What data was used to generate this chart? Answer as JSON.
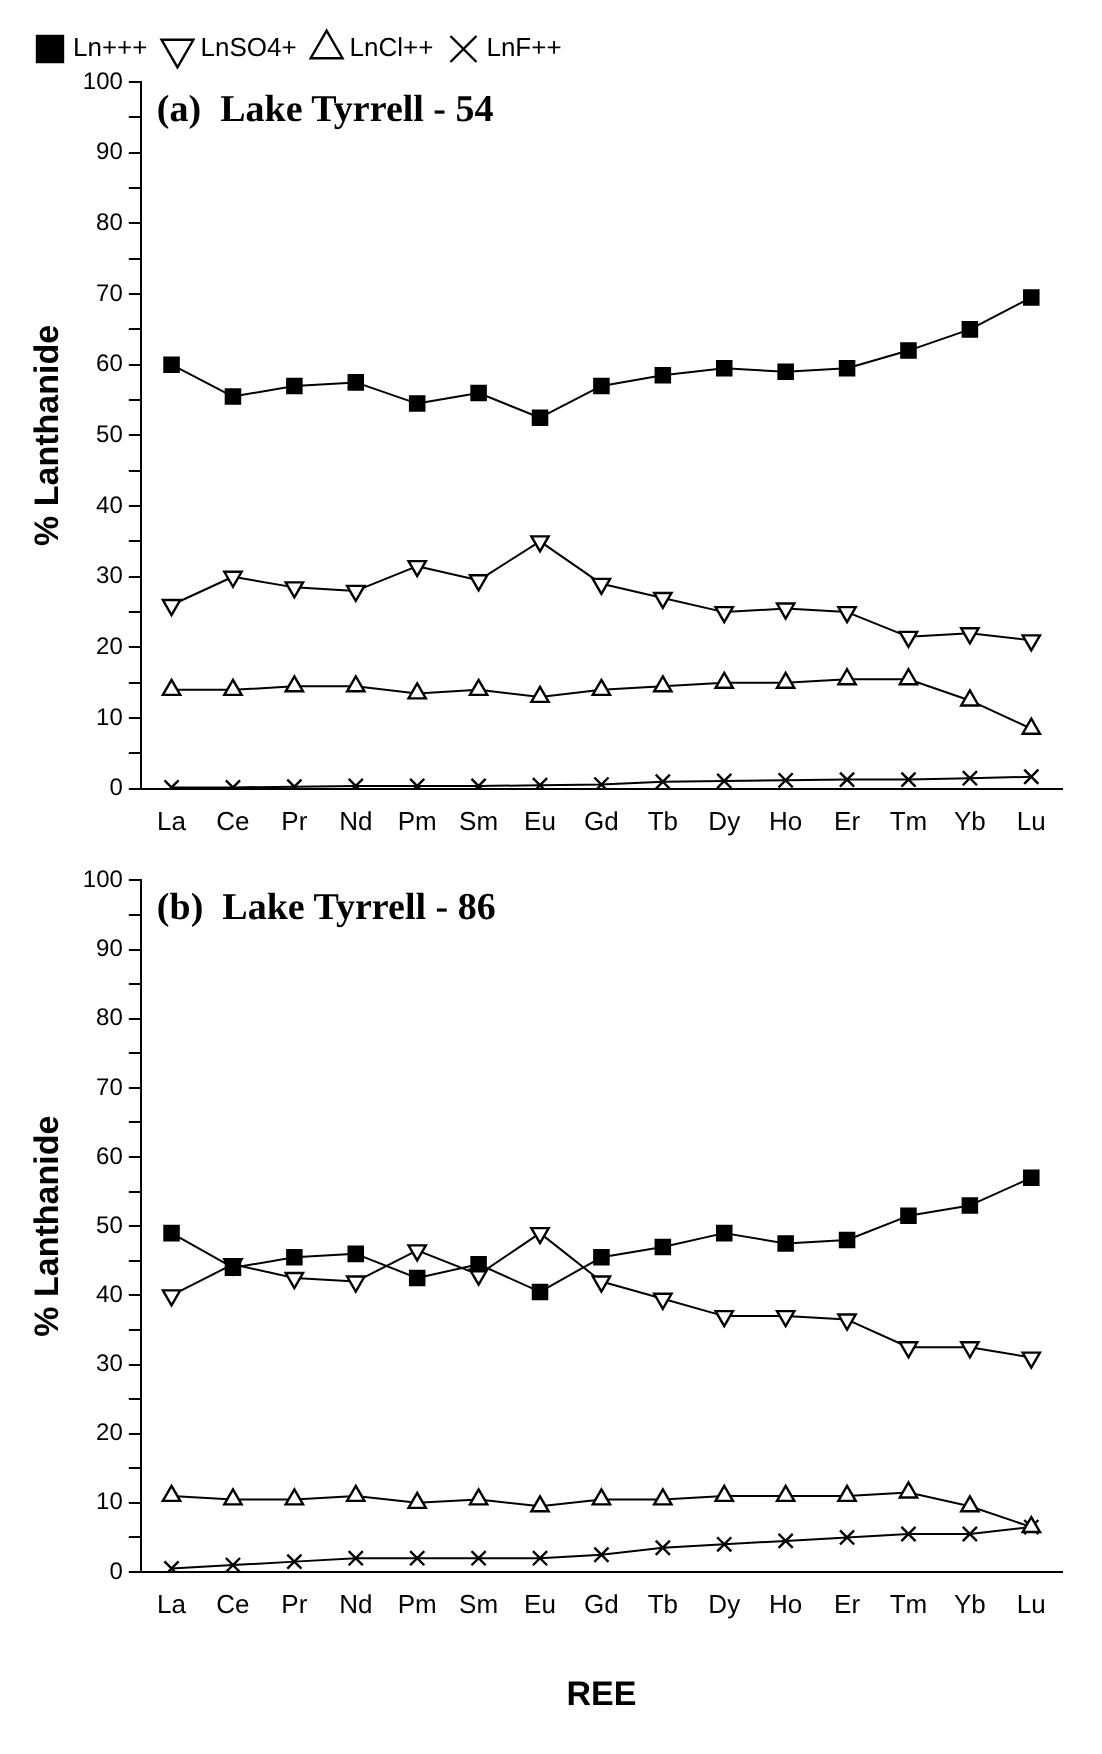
{
  "chart_data": [
    {
      "type": "line",
      "title": "(a)  Lake Tyrrell - 54",
      "ylabel": "% Lanthanide",
      "categories": [
        "La",
        "Ce",
        "Pr",
        "Nd",
        "Pm",
        "Sm",
        "Eu",
        "Gd",
        "Tb",
        "Dy",
        "Ho",
        "Er",
        "Tm",
        "Yb",
        "Lu"
      ],
      "ylim": [
        0,
        100
      ],
      "yticks": [
        0,
        {
          "value": 5,
          "label": null
        },
        10,
        {
          "value": 15,
          "label": null
        },
        20,
        {
          "value": 25,
          "label": null
        },
        30,
        {
          "value": 35,
          "label": null
        },
        40,
        {
          "value": 45,
          "label": null
        },
        50,
        {
          "value": 55,
          "label": null
        },
        60,
        {
          "value": 65,
          "label": null
        },
        70,
        {
          "value": 75,
          "label": null
        },
        80,
        {
          "value": 85,
          "label": null
        },
        90,
        {
          "value": 95,
          "label": null
        },
        100
      ],
      "grid": false,
      "legend": "top left",
      "line_style": "solid",
      "series": [
        {
          "name": "Ln+++",
          "color": "#000000",
          "marker": "square",
          "values": [
            60,
            55.5,
            57,
            57.5,
            54.5,
            56,
            52.5,
            57,
            58.5,
            59.5,
            59,
            59.5,
            62,
            65,
            69.5
          ]
        },
        {
          "name": "LnSO4+",
          "color": "#000000",
          "marker": "triangle-down",
          "values": [
            26,
            30,
            28.5,
            28,
            31.5,
            29.5,
            35,
            29,
            27,
            25,
            25.5,
            25,
            21.5,
            22,
            21
          ]
        },
        {
          "name": "LnCl++",
          "color": "#000000",
          "marker": "triangle",
          "values": [
            14,
            14,
            14.5,
            14.5,
            13.5,
            14,
            13,
            14,
            14.5,
            15,
            15,
            15.5,
            15.5,
            12.5,
            8.5
          ]
        },
        {
          "name": "LnF++",
          "color": "#000000",
          "marker": "cross",
          "values": [
            0.2,
            0.2,
            0.3,
            0.4,
            0.4,
            0.4,
            0.5,
            0.6,
            1,
            1.1,
            1.2,
            1.3,
            1.3,
            1.5,
            1.7
          ]
        }
      ]
    },
    {
      "type": "line",
      "title": "(b)  Lake Tyrrell - 86",
      "ylabel": "% Lanthanide",
      "xlabel": "REE",
      "categories": [
        "La",
        "Ce",
        "Pr",
        "Nd",
        "Pm",
        "Sm",
        "Eu",
        "Gd",
        "Tb",
        "Dy",
        "Ho",
        "Er",
        "Tm",
        "Yb",
        "Lu"
      ],
      "ylim": [
        0,
        100
      ],
      "yticks": [
        0,
        {
          "value": 5,
          "label": null
        },
        10,
        {
          "value": 15,
          "label": null
        },
        20,
        {
          "value": 25,
          "label": null
        },
        30,
        {
          "value": 35,
          "label": null
        },
        40,
        {
          "value": 45,
          "label": null
        },
        50,
        {
          "value": 55,
          "label": null
        },
        60,
        {
          "value": 65,
          "label": null
        },
        70,
        {
          "value": 75,
          "label": null
        },
        80,
        {
          "value": 85,
          "label": null
        },
        90,
        {
          "value": 95,
          "label": null
        },
        100
      ],
      "grid": false,
      "line_style": "solid",
      "series": [
        {
          "color": "#000000",
          "marker": "square",
          "values": [
            49,
            44,
            45.5,
            46,
            42.5,
            44.5,
            40.5,
            45.5,
            47,
            49,
            47.5,
            48,
            51.5,
            53,
            57
          ]
        },
        {
          "color": "#000000",
          "marker": "triangle-down",
          "values": [
            40,
            44.5,
            42.5,
            42,
            46.5,
            43,
            49,
            42,
            39.5,
            37,
            37,
            36.5,
            32.5,
            32.5,
            31
          ]
        },
        {
          "color": "#000000",
          "marker": "triangle",
          "values": [
            11,
            10.5,
            10.5,
            11,
            10,
            10.5,
            9.5,
            10.5,
            10.5,
            11,
            11,
            11,
            11.5,
            9.5,
            6.5
          ]
        },
        {
          "color": "#000000",
          "marker": "cross",
          "values": [
            0.5,
            1,
            1.5,
            2,
            2,
            2,
            2,
            2.5,
            3.5,
            4,
            4.5,
            5,
            5.5,
            5.5,
            6.5
          ]
        }
      ]
    }
  ]
}
